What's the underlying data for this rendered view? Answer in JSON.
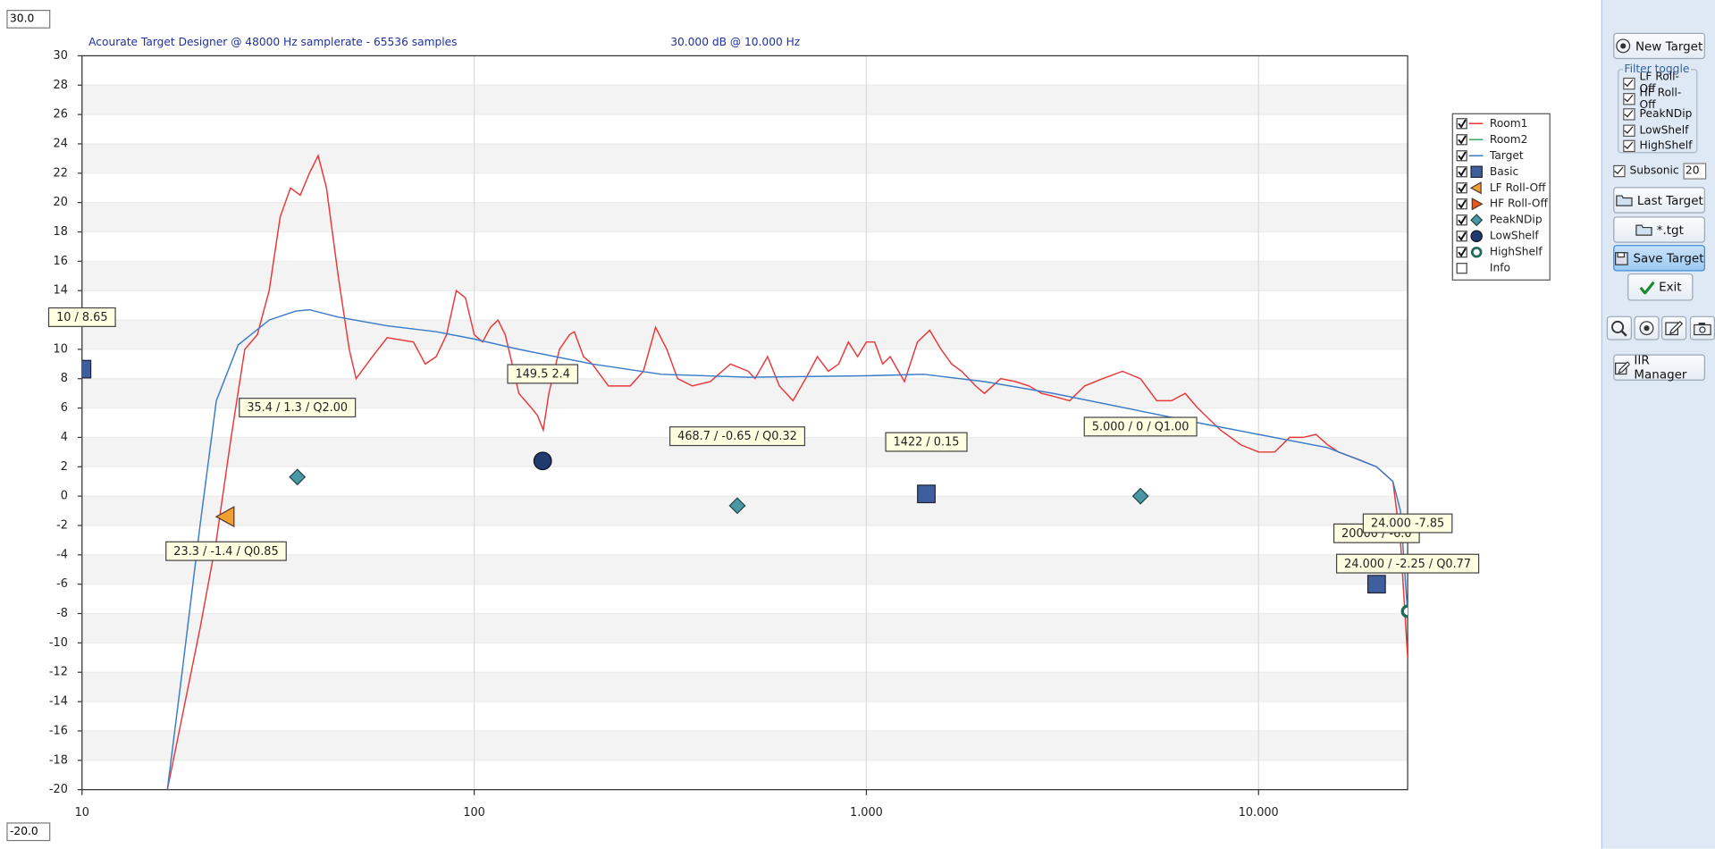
{
  "chart_data": {
    "type": "line",
    "title": "Acourate Target Designer @ 48000 Hz samplerate - 65536 samples",
    "subtitle": "30.000 dB @ 10.000 Hz",
    "log_x": true,
    "grid": true,
    "xlim": [
      10,
      24000
    ],
    "xticks": [
      10,
      100,
      {
        "value": 1000,
        "label": "1.000"
      },
      {
        "value": 10000,
        "label": "10.000"
      }
    ],
    "ylim": [
      -20,
      30
    ],
    "yticks": [
      -20,
      -18,
      -16,
      -14,
      -12,
      -10,
      -8,
      -6,
      -4,
      -2,
      0,
      2,
      4,
      6,
      8,
      10,
      12,
      14,
      16,
      18,
      20,
      22,
      24,
      26,
      28,
      30
    ],
    "series": [
      {
        "name": "Room1",
        "color": "#e8383a",
        "x": [
          16.5,
          20,
          22,
          24,
          26,
          28,
          30,
          32,
          34,
          36,
          38,
          40,
          42,
          45,
          48,
          50,
          55,
          60,
          70,
          75,
          80,
          85,
          90,
          95,
          100,
          105,
          110,
          115,
          120,
          125,
          130,
          140,
          145,
          150,
          155,
          165,
          175,
          180,
          190,
          200,
          220,
          250,
          270,
          290,
          310,
          330,
          360,
          400,
          450,
          500,
          520,
          560,
          600,
          650,
          700,
          750,
          800,
          850,
          900,
          950,
          1000,
          1050,
          1100,
          1150,
          1250,
          1350,
          1450,
          1550,
          1650,
          1750,
          1900,
          2000,
          2200,
          2400,
          2600,
          2800,
          3000,
          3300,
          3600,
          4000,
          4500,
          5000,
          5500,
          6000,
          6500,
          7000,
          8000,
          9000,
          10000,
          11000,
          12000,
          13000,
          14000,
          15000,
          16000,
          18000,
          20000,
          22000,
          23000,
          24000
        ],
        "values": [
          -20,
          -9,
          -3,
          4,
          10,
          11,
          14,
          19,
          21,
          20.5,
          22,
          23.2,
          21,
          15,
          10,
          8,
          9.5,
          10.8,
          10.5,
          9,
          9.5,
          11,
          14,
          13.5,
          11,
          10.5,
          11.5,
          12,
          11,
          9,
          7,
          6,
          5.5,
          4.5,
          7,
          10,
          11,
          11.2,
          9.5,
          9,
          7.5,
          7.5,
          8.5,
          11.5,
          10,
          8,
          7.5,
          7.8,
          9,
          8.5,
          8,
          9.5,
          7.5,
          6.5,
          8,
          9.5,
          8.5,
          9,
          10.5,
          9.5,
          10.5,
          10.5,
          9,
          9.5,
          7.8,
          10.5,
          11.3,
          10,
          9,
          8.5,
          7.5,
          7,
          8,
          7.8,
          7.5,
          7,
          6.8,
          6.5,
          7.5,
          8,
          8.5,
          8,
          6.5,
          6.5,
          7,
          6,
          4.5,
          3.5,
          3,
          3,
          4,
          4,
          4.2,
          3.5,
          3,
          2.5,
          2,
          1,
          -3,
          -11
        ]
      },
      {
        "name": "Target",
        "color": "#3a7cc8",
        "x": [
          16.5,
          18,
          20,
          22,
          25,
          30,
          35,
          38,
          45,
          60,
          80,
          100,
          130,
          200,
          300,
          500,
          1000,
          1400,
          2000,
          3000,
          5000,
          7000,
          10000,
          15000,
          20000,
          22000,
          23000,
          24000
        ],
        "values": [
          -20,
          -12,
          -2,
          6.5,
          10.3,
          12,
          12.6,
          12.7,
          12.2,
          11.6,
          11.2,
          10.7,
          10,
          9,
          8.3,
          8.1,
          8.2,
          8.3,
          7.8,
          7,
          5.8,
          5,
          4.2,
          3.3,
          2,
          1,
          -1,
          -8
        ]
      }
    ],
    "legend": [
      {
        "name": "Room1",
        "checked": true,
        "marker": "line",
        "color": "#e8383a"
      },
      {
        "name": "Room2",
        "checked": true,
        "marker": "line",
        "color": "#3aa86a"
      },
      {
        "name": "Target",
        "checked": true,
        "marker": "line",
        "color": "#3a7cc8"
      },
      {
        "name": "Basic",
        "checked": true,
        "marker": "square",
        "color": "#3d5f9e"
      },
      {
        "name": "LF Roll-Off",
        "checked": true,
        "marker": "triangle-left",
        "color": "#f0a030"
      },
      {
        "name": "HF Roll-Off",
        "checked": true,
        "marker": "triangle-right",
        "color": "#e8581c"
      },
      {
        "name": "PeakNDip",
        "checked": true,
        "marker": "diamond",
        "color": "#4a98a6"
      },
      {
        "name": "LowShelf",
        "checked": true,
        "marker": "circle",
        "color": "#1f3a6e"
      },
      {
        "name": "HighShelf",
        "checked": true,
        "marker": "ring",
        "color": "#1f6b5a"
      },
      {
        "name": "Info",
        "checked": false,
        "marker": "none",
        "color": "#000000"
      }
    ],
    "points": [
      {
        "filter": "Basic",
        "x": 10,
        "value": 8.65,
        "label": "10 / 8.65"
      },
      {
        "filter": "LF Roll-Off",
        "x": 23.3,
        "value": -1.4,
        "label": "23.3 / -1.4 / Q0.85"
      },
      {
        "filter": "PeakNDip",
        "x": 35.4,
        "value": 1.3,
        "label": "35.4 / 1.3 / Q2.00"
      },
      {
        "filter": "LowShelf",
        "x": 149.5,
        "value": 2.4,
        "label": "149.5 2.4"
      },
      {
        "filter": "PeakNDip",
        "x": 468.7,
        "value": -0.65,
        "label": "468.7 / -0.65 / Q0.32"
      },
      {
        "filter": "Basic",
        "x": 1422,
        "value": 0.15,
        "label": "1422 / 0.15"
      },
      {
        "filter": "PeakNDip",
        "x": 5000,
        "value": 0,
        "label": "5.000 / 0 / Q1.00"
      },
      {
        "filter": "Basic",
        "x": 20000,
        "value": -6.0,
        "label": "20000 / -6.0"
      },
      {
        "filter": "HighShelf",
        "x": 24000,
        "value": -7.85,
        "label": "24.000 -7.85"
      },
      {
        "filter": "HF Roll-Off",
        "x": 24000,
        "value": -2.25,
        "label": "24.000 / -2.25 / Q0.77"
      }
    ]
  },
  "inputs": {
    "ymax": "30.0",
    "ymin": "-20.0"
  },
  "sidebar": {
    "new_target": "New Target",
    "filter_toggle": {
      "title": "Filter toggle",
      "items": [
        {
          "label": "LF Roll-Off",
          "checked": true
        },
        {
          "label": "HF Roll-Off",
          "checked": true
        },
        {
          "label": "PeakNDip",
          "checked": true
        },
        {
          "label": "LowShelf",
          "checked": true
        },
        {
          "label": "HighShelf",
          "checked": true
        }
      ]
    },
    "subsonic": {
      "label": "Subsonic",
      "checked": true,
      "value": "20"
    },
    "last_target": "Last Target",
    "tgt": "*.tgt",
    "save_target": "Save Target",
    "exit": "Exit",
    "iir_manager": "IIR Manager"
  }
}
